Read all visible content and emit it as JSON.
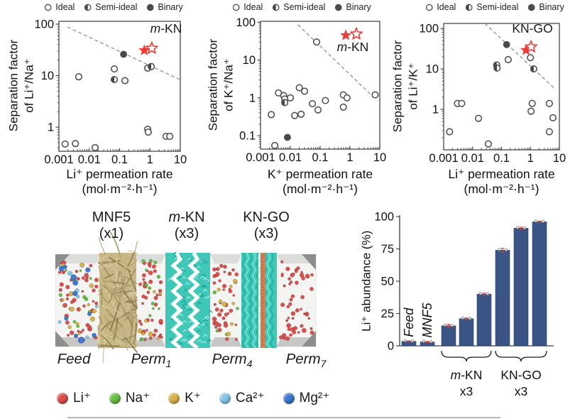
{
  "scatter_legend": {
    "items": [
      {
        "label": "Ideal",
        "marker": "open"
      },
      {
        "label": "Semi-ideal",
        "marker": "semi"
      },
      {
        "label": "Binary",
        "marker": "filled"
      }
    ]
  },
  "colors": {
    "marker_gray": "#4a4a4a",
    "star_red": "#ee3a34",
    "dashed_gray": "#7f7f7f",
    "bar_navy": "#3a5585",
    "error_red": "#e0392f",
    "membrane_teal": "#3fc8b8",
    "membrane_tan": "#c9b887",
    "stripe_orange": "#e2794b"
  },
  "chart_data": [
    {
      "type": "scatter",
      "ylabel_line1": "Separation factor",
      "ylabel_line2": "of Li⁺/Na⁺",
      "xlabel_line1": "Li⁺ permeation rate",
      "xlabel_line2": "(mol·m⁻²·h⁻¹)",
      "xlim": [
        0.001,
        10
      ],
      "ylim": [
        0.34,
        113.5
      ],
      "x_ticks": [
        0.001,
        0.01,
        0.1,
        1,
        10
      ],
      "x_tick_labels": [
        "0.001",
        "0.01",
        "0.1",
        "1",
        "10"
      ],
      "y_ticks": [
        1,
        10,
        100
      ],
      "y_tick_labels": [
        "1",
        "10",
        "100"
      ],
      "annotation": {
        "text": "*m*-KN",
        "x": 3.4,
        "y": 68
      },
      "series": {
        "ideal": [
          [
            0.0016,
            0.47
          ],
          [
            0.0035,
            0.48
          ],
          [
            0.0156,
            0.4
          ],
          [
            0.0045,
            9.5
          ],
          [
            0.067,
            13.5
          ],
          [
            0.15,
            8
          ],
          [
            0.84,
            14
          ],
          [
            0.84,
            0.91
          ],
          [
            0.88,
            0.8
          ],
          [
            3.4,
            0.66
          ],
          [
            4.5,
            0.66
          ]
        ],
        "semi": [
          [
            0.067,
            8.4
          ],
          [
            1.1,
            15
          ]
        ],
        "binary": [
          [
            0.135,
            26
          ]
        ]
      },
      "stars": {
        "filled": [
          0.65,
          31
        ],
        "open": [
          1.15,
          34
        ]
      },
      "dashed_line": [
        [
          0.0019,
          88
        ],
        [
          9.5,
          8.4
        ]
      ]
    },
    {
      "type": "scatter",
      "ylabel_line1": "Separation factor",
      "ylabel_line2": "of K⁺/Na⁺",
      "xlabel_line1": "K⁺ permeation rate",
      "xlabel_line2": "(mol·m⁻²·h⁻¹)",
      "xlim": [
        0.001,
        10
      ],
      "ylim": [
        0.044,
        106
      ],
      "x_ticks": [
        0.001,
        0.01,
        0.1,
        1,
        10
      ],
      "x_tick_labels": [
        "0.001",
        "0.01",
        "0.1",
        "1",
        "10"
      ],
      "y_ticks": [
        0.1,
        1,
        10,
        100
      ],
      "y_tick_labels": [
        "0.1",
        "1",
        "10",
        "100"
      ],
      "annotation": {
        "text": "*m*-KN",
        "x": 1.24,
        "y": 17.3
      },
      "series": {
        "ideal": [
          [
            0.0023,
            0.36
          ],
          [
            0.003,
            0.055
          ],
          [
            0.004,
            1.35
          ],
          [
            0.006,
            1.15
          ],
          [
            0.0065,
            0.93
          ],
          [
            0.01,
            1.0
          ],
          [
            0.014,
            0.34
          ],
          [
            0.02,
            1.85
          ],
          [
            0.023,
            0.37
          ],
          [
            0.03,
            1.5
          ],
          [
            0.055,
            0.7
          ],
          [
            0.085,
            0.48
          ],
          [
            0.076,
            30
          ],
          [
            0.15,
            0.85
          ],
          [
            0.6,
            1.2
          ],
          [
            0.6,
            0.57
          ],
          [
            0.8,
            1.0
          ],
          [
            7,
            1.2
          ]
        ],
        "semi": [
          [
            0.0065,
            0.75
          ]
        ],
        "binary": [
          [
            0.008,
            0.09
          ]
        ]
      },
      "stars": {
        "filled": [
          0.72,
          45
        ],
        "open": [
          1.64,
          49
        ]
      },
      "dashed_line": [
        [
          0.018,
          86
        ],
        [
          5.2,
          1.19
        ]
      ]
    },
    {
      "type": "scatter",
      "ylabel_line1": "Separation factor",
      "ylabel_line2": "of Li⁺/K⁺",
      "xlabel_line1": "Li⁺ permeation rate",
      "xlabel_line2": "(mol·m⁻²·h⁻¹)",
      "xlim": [
        0.001,
        10
      ],
      "ylim": [
        0.1,
        133
      ],
      "x_ticks": [
        0.001,
        0.01,
        0.1,
        1,
        10
      ],
      "x_tick_labels": [
        "0.001",
        "0.01",
        "0.1",
        "1",
        "10"
      ],
      "y_ticks": [
        1,
        10,
        100
      ],
      "y_tick_labels": [
        "1",
        "10",
        "100"
      ],
      "annotation": {
        "text": "KN-GO",
        "x": 1.17,
        "y": 78.5
      },
      "series": {
        "ideal": [
          [
            0.0016,
            0.28
          ],
          [
            0.003,
            1.4
          ],
          [
            0.0042,
            1.4
          ],
          [
            0.016,
            0.6
          ],
          [
            0.035,
            0.14
          ],
          [
            0.17,
            17
          ],
          [
            1.0,
            19
          ],
          [
            1.15,
            1.4
          ],
          [
            1.05,
            0.9
          ],
          [
            4.5,
            1.4
          ],
          [
            6,
            0.62
          ],
          [
            4.5,
            0.28
          ]
        ],
        "semi": [
          [
            0.068,
            12.5
          ],
          [
            0.07,
            10.5
          ],
          [
            1.3,
            10
          ]
        ],
        "binary": [
          [
            0.15,
            40
          ]
        ]
      },
      "stars": {
        "filled": [
          0.7,
          29
        ],
        "open": [
          1.05,
          35
        ]
      },
      "dashed_line": [
        [
          0.0265,
          133
        ],
        [
          7.1,
          3.2
        ]
      ]
    },
    {
      "type": "bar",
      "ylabel": "Li⁺ abundance (%)",
      "ylim": [
        0,
        100
      ],
      "y_ticks": [
        0,
        25,
        50,
        75,
        100
      ],
      "y_tick_labels": [
        "0",
        "25",
        "50",
        "75",
        "100"
      ],
      "bars": [
        {
          "label": "Feed",
          "value": 3.5,
          "err": 0.4
        },
        {
          "label": "MNF5",
          "value": 3.0,
          "err": 0.4
        },
        {
          "label": "",
          "value": 15.5,
          "err": 1.2
        },
        {
          "label": "",
          "value": 21.0,
          "err": 0.6
        },
        {
          "label": "",
          "value": 40.0,
          "err": 0.8
        },
        {
          "label": "",
          "value": 74.0,
          "err": 1.5
        },
        {
          "label": "",
          "value": 91.0,
          "err": 0.8
        },
        {
          "label": "",
          "value": 96.0,
          "err": 0.5
        }
      ],
      "groups": [
        {
          "label": "*m*-KN",
          "sub": "x3",
          "from": 2,
          "to": 4
        },
        {
          "label": "KN-GO",
          "sub": "x3",
          "from": 5,
          "to": 7
        }
      ]
    }
  ],
  "schematic": {
    "membranes": [
      {
        "name": "MNF5",
        "count": "(x1)"
      },
      {
        "name": "*m*-KN",
        "count": "(x3)"
      },
      {
        "name": "KN-GO",
        "count": "(x3)"
      }
    ],
    "chambers": [
      {
        "label": "Feed",
        "sub": "",
        "dots": [
          48,
          12,
          12,
          7,
          11
        ]
      },
      {
        "label": "Perm",
        "sub": "1",
        "dots": [
          44,
          12,
          7,
          0,
          0
        ]
      },
      {
        "label": "Perm",
        "sub": "4",
        "dots": [
          40,
          4,
          9,
          0,
          0
        ]
      },
      {
        "label": "Perm",
        "sub": "7",
        "dots": [
          52,
          0,
          0,
          0,
          0
        ]
      }
    ],
    "ions": [
      {
        "label": "Li⁺",
        "color": "#dd4f4f"
      },
      {
        "label": "Na⁺",
        "color": "#68c144"
      },
      {
        "label": "K⁺",
        "color": "#d9b24a"
      },
      {
        "label": "Ca²⁺",
        "color": "#85c6e8"
      },
      {
        "label": "Mg²⁺",
        "color": "#3e78cf"
      }
    ]
  }
}
